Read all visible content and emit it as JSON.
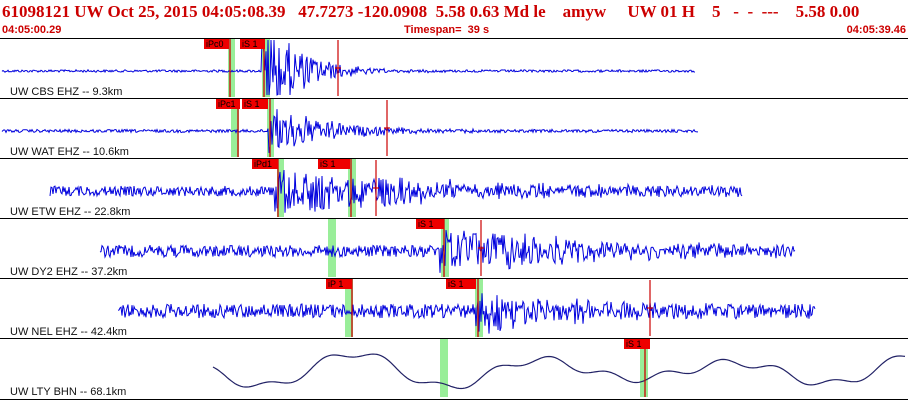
{
  "header": {
    "title": "61098121 UW Oct 25, 2015 04:05:08.39   47.7273 -120.0908  5.58 0.63 Md le    amyw     UW 01 H    5   -  -  ---    5.58 0.00",
    "start_time": "04:05:00.29",
    "timespan": "Timespan=  39 s",
    "end_time": "04:05:39.46"
  },
  "colors": {
    "header_text": "#cc0000",
    "waveform": "#0000dd",
    "waveform_long_period": "#222266",
    "pick_label_bg": "#ee0000",
    "pick_line": "#cc0000",
    "shade": "#99ee99"
  },
  "traces": [
    {
      "label": "UW CBS EHZ -- 9.3km",
      "style": "spike",
      "picks": [
        {
          "text": "iPc0"
        },
        {
          "text": "iS 1"
        }
      ]
    },
    {
      "label": "UW WAT EHZ -- 10.6km",
      "style": "burst",
      "picks": [
        {
          "text": "iPc1"
        },
        {
          "text": "iS 1"
        }
      ]
    },
    {
      "label": "UW ETW EHZ -- 22.8km",
      "style": "noisy",
      "picks": [
        {
          "text": "iPd1"
        },
        {
          "text": "iS 1"
        }
      ]
    },
    {
      "label": "UW DY2 EHZ -- 37.2km",
      "style": "noisy",
      "picks": [
        {
          "text": "iS 1"
        }
      ]
    },
    {
      "label": "UW NEL EHZ -- 42.4km",
      "style": "noisy",
      "picks": [
        {
          "text": "iP 1"
        },
        {
          "text": "iS 1"
        }
      ]
    },
    {
      "label": "UW LTY BHN -- 68.1km",
      "style": "wave",
      "picks": [
        {
          "text": "iS 1"
        }
      ]
    }
  ]
}
